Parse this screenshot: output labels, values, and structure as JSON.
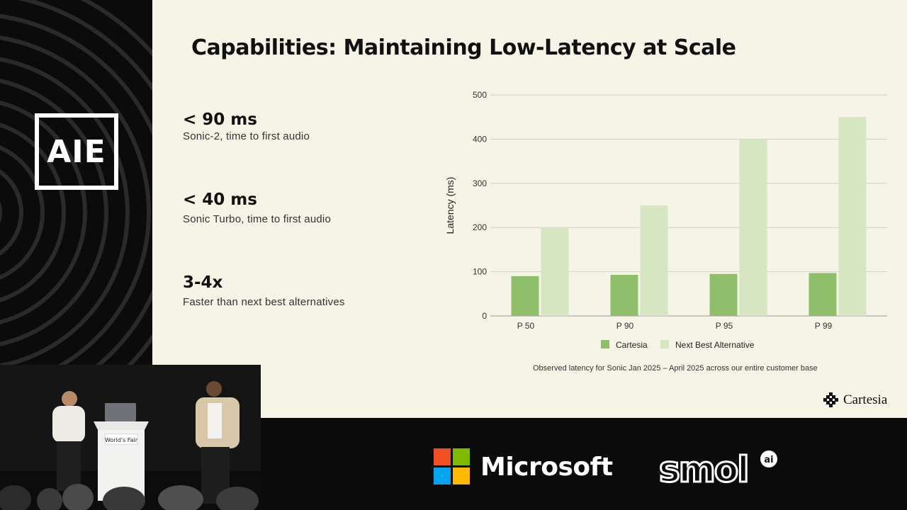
{
  "event_logo": {
    "text": "AIE"
  },
  "slide": {
    "title": "Capabilities: Maintaining Low-Latency at Scale",
    "stats": [
      {
        "value": "< 90 ms",
        "desc": "Sonic-2, time to first audio"
      },
      {
        "value": "< 40 ms",
        "desc": "Sonic Turbo, time to first audio"
      },
      {
        "value": "3-4x",
        "desc": "Faster than next best alternatives"
      }
    ],
    "caption": "Observed latency for Sonic Jan 2025 – April 2025 across our entire customer base",
    "brand": "Cartesia"
  },
  "chart_data": {
    "type": "bar",
    "categories": [
      "P 50",
      "P 90",
      "P 95",
      "P 99"
    ],
    "series": [
      {
        "name": "Cartesia",
        "values": [
          90,
          93,
          95,
          97
        ],
        "color": "#8fbf6a"
      },
      {
        "name": "Next Best Alternative",
        "values": [
          200,
          250,
          400,
          450
        ],
        "color": "#d6e6c2"
      }
    ],
    "ylabel": "Latency (ms)",
    "xlabel": "",
    "ylim": [
      0,
      500
    ],
    "yticks": [
      0,
      100,
      200,
      300,
      400,
      500
    ],
    "grid": true,
    "legend_position": "bottom"
  },
  "video": {
    "podium_sign": "World's Fair"
  },
  "sponsors": {
    "microsoft": "Microsoft",
    "smol": "smol",
    "smol_badge": "ai"
  },
  "colors": {
    "slide_bg": "#f6f4e6",
    "cartesia": "#8fbf6a",
    "alternative": "#d6e6c2",
    "page_bg": "#0b0b0b"
  }
}
